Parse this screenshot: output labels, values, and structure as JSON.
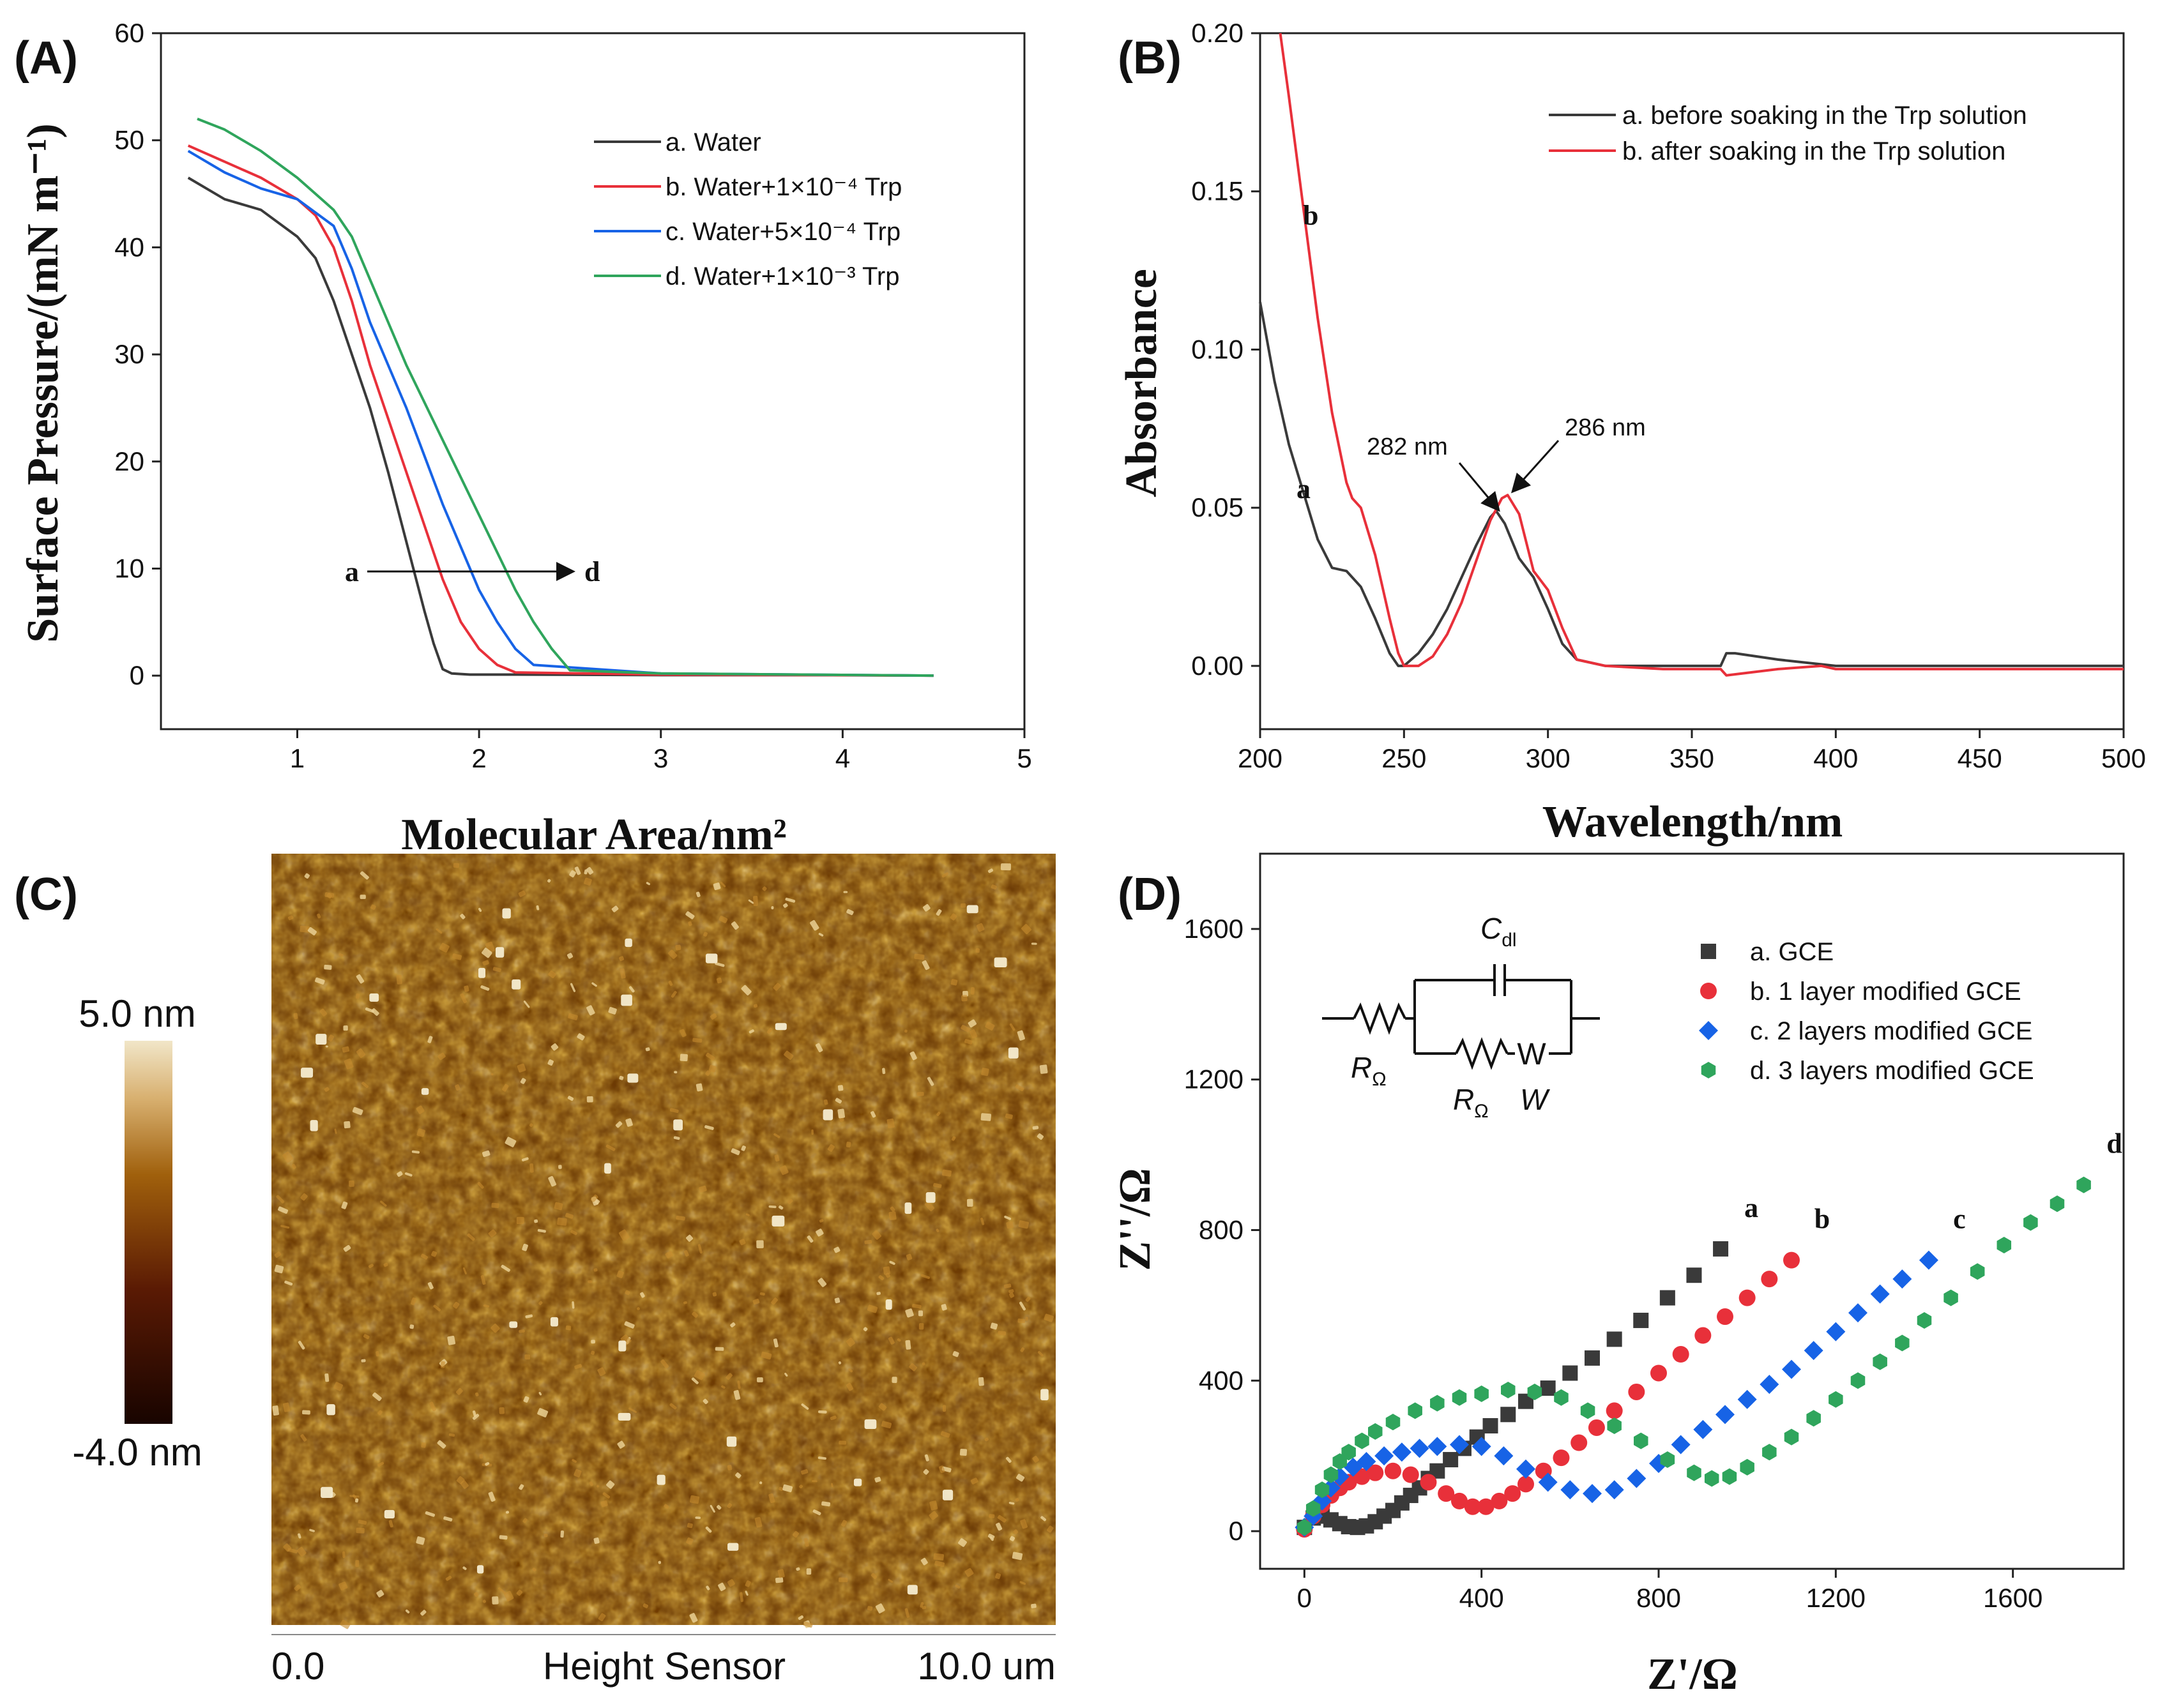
{
  "panel_letters": {
    "A": "(A)",
    "B": "(B)",
    "C": "(C)",
    "D": "(D)"
  },
  "colors": {
    "black": "#3a3a3a",
    "red": "#e8303a",
    "blue": "#1763e6",
    "green": "#2fa55c",
    "afm_dark": "#2a0800",
    "afm_mid": "#9a5a08",
    "afm_light": "#efe0c0"
  },
  "chart_data": [
    {
      "panel": "A",
      "type": "line",
      "xlabel": "Molecular Area/nm²",
      "ylabel": "Surface Pressure/(mN m⁻¹)",
      "xlim": [
        0.25,
        5
      ],
      "ylim": [
        -5,
        60
      ],
      "xticks": [
        "1",
        "2",
        "3",
        "4",
        "5"
      ],
      "yticks": [
        "0",
        "10",
        "20",
        "30",
        "40",
        "50",
        "60"
      ],
      "legend": [
        "a. Water",
        "b. Water+1×10⁻⁴ Trp",
        "c. Water+5×10⁻⁴ Trp",
        "d. Water+1×10⁻³ Trp"
      ],
      "legend_position": "top-right",
      "annotations": {
        "start": "a",
        "end": "d"
      },
      "series": [
        {
          "name": "a. Water",
          "color": "black",
          "x": [
            0.4,
            0.6,
            0.8,
            1.0,
            1.1,
            1.2,
            1.3,
            1.4,
            1.5,
            1.6,
            1.7,
            1.75,
            1.8,
            1.85,
            1.95,
            2.2,
            3.0,
            4.0,
            4.5
          ],
          "y": [
            46.5,
            44.5,
            43.5,
            41,
            39,
            35,
            30,
            25,
            19,
            12.5,
            6,
            3,
            0.6,
            0.2,
            0.1,
            0.1,
            0.05,
            0.05,
            0
          ]
        },
        {
          "name": "b. Water+1×10⁻⁴ Trp",
          "color": "red",
          "x": [
            0.4,
            0.6,
            0.8,
            1.0,
            1.1,
            1.2,
            1.3,
            1.4,
            1.5,
            1.6,
            1.7,
            1.8,
            1.9,
            2.0,
            2.1,
            2.2,
            3.0,
            4.5
          ],
          "y": [
            49.5,
            48,
            46.5,
            44.5,
            43,
            40,
            35,
            29,
            24,
            19,
            14,
            9,
            5,
            2.5,
            1,
            0.3,
            0.1,
            0
          ]
        },
        {
          "name": "c. Water+5×10⁻⁴ Trp",
          "color": "blue",
          "x": [
            0.4,
            0.6,
            0.8,
            1.0,
            1.2,
            1.3,
            1.4,
            1.5,
            1.6,
            1.7,
            1.8,
            1.9,
            2.0,
            2.1,
            2.2,
            2.3,
            3.0,
            4.5
          ],
          "y": [
            49,
            47,
            45.5,
            44.5,
            42,
            38,
            33,
            29,
            25,
            20.5,
            16,
            12,
            8,
            5,
            2.5,
            1,
            0.2,
            0
          ]
        },
        {
          "name": "d. Water+1×10⁻³ Trp",
          "color": "green",
          "x": [
            0.45,
            0.6,
            0.8,
            1.0,
            1.2,
            1.3,
            1.4,
            1.5,
            1.6,
            1.7,
            1.8,
            1.9,
            2.0,
            2.1,
            2.2,
            2.3,
            2.4,
            2.5,
            3.0,
            4.5
          ],
          "y": [
            52,
            51,
            49,
            46.5,
            43.5,
            41,
            37,
            33,
            29,
            25.5,
            22,
            18.5,
            15,
            11.5,
            8,
            5,
            2.5,
            0.5,
            0.2,
            0
          ]
        }
      ]
    },
    {
      "panel": "B",
      "type": "line",
      "xlabel": "Wavelength/nm",
      "ylabel": "Absorbance",
      "xlim": [
        200,
        500
      ],
      "ylim": [
        -0.02,
        0.2
      ],
      "xticks": [
        "200",
        "250",
        "300",
        "350",
        "400",
        "450",
        "500"
      ],
      "yticks": [
        "0.00",
        "0.05",
        "0.10",
        "0.15",
        "0.20"
      ],
      "legend": [
        "a. before soaking in the Trp solution",
        "b. after soaking in the Trp solution"
      ],
      "legend_position": "top-right",
      "annotations": {
        "peak_a": "282 nm",
        "peak_b": "286 nm",
        "label_a": "a",
        "label_b": "b"
      },
      "series": [
        {
          "name": "a. before soaking in the Trp solution",
          "color": "black",
          "x": [
            200,
            205,
            210,
            215,
            220,
            225,
            230,
            235,
            240,
            245,
            248,
            250,
            255,
            260,
            265,
            270,
            275,
            280,
            282,
            285,
            290,
            295,
            300,
            305,
            310,
            320,
            340,
            360,
            362,
            365,
            380,
            400,
            450,
            500
          ],
          "y": [
            0.115,
            0.09,
            0.07,
            0.055,
            0.04,
            0.031,
            0.03,
            0.025,
            0.015,
            0.004,
            0.0,
            0.0,
            0.004,
            0.01,
            0.018,
            0.028,
            0.038,
            0.047,
            0.049,
            0.045,
            0.034,
            0.028,
            0.018,
            0.007,
            0.002,
            0.0,
            0.0,
            0.0,
            0.004,
            0.004,
            0.002,
            0.0,
            0.0,
            0.0
          ]
        },
        {
          "name": "b. after soaking in the Trp solution",
          "color": "red",
          "x": [
            207,
            210,
            215,
            220,
            225,
            230,
            232,
            235,
            240,
            245,
            248,
            250,
            255,
            260,
            265,
            270,
            275,
            280,
            284,
            286,
            290,
            295,
            300,
            305,
            310,
            320,
            340,
            360,
            362,
            380,
            395,
            400,
            450,
            500
          ],
          "y": [
            0.2,
            0.18,
            0.145,
            0.11,
            0.08,
            0.058,
            0.053,
            0.05,
            0.035,
            0.015,
            0.004,
            0.0,
            0.0,
            0.003,
            0.01,
            0.02,
            0.033,
            0.046,
            0.053,
            0.054,
            0.048,
            0.03,
            0.024,
            0.012,
            0.002,
            0.0,
            -0.001,
            -0.001,
            -0.003,
            -0.001,
            0.0,
            -0.001,
            -0.001,
            -0.001
          ]
        }
      ]
    },
    {
      "panel": "D",
      "type": "scatter",
      "xlabel": "Z'/Ω",
      "ylabel": "Z''/Ω",
      "xlim": [
        -100,
        1850
      ],
      "ylim": [
        -100,
        1800
      ],
      "xticks": [
        "0",
        "400",
        "800",
        "1200",
        "1600"
      ],
      "yticks": [
        "0",
        "400",
        "800",
        "1200",
        "1600"
      ],
      "legend": [
        "a. GCE",
        "b. 1 layer modified GCE",
        "c. 2 layers modified GCE",
        "d. 3 layers modified GCE"
      ],
      "legend_position": "top-right",
      "end_labels": [
        "a",
        "b",
        "c",
        "d"
      ],
      "series": [
        {
          "name": "a. GCE",
          "color": "black",
          "marker": "square",
          "x": [
            0,
            20,
            40,
            60,
            80,
            100,
            120,
            140,
            160,
            180,
            200,
            220,
            240,
            260,
            280,
            300,
            330,
            360,
            390,
            420,
            460,
            500,
            550,
            600,
            650,
            700,
            760,
            820,
            880,
            940
          ],
          "y": [
            10,
            35,
            40,
            30,
            20,
            12,
            10,
            14,
            25,
            40,
            55,
            75,
            95,
            115,
            140,
            160,
            190,
            220,
            250,
            280,
            310,
            345,
            380,
            420,
            460,
            510,
            560,
            620,
            680,
            750
          ]
        },
        {
          "name": "b. 1 layer modified GCE",
          "color": "red",
          "marker": "circle",
          "x": [
            0,
            20,
            40,
            60,
            80,
            100,
            130,
            160,
            200,
            240,
            280,
            320,
            350,
            380,
            410,
            440,
            470,
            500,
            540,
            580,
            620,
            660,
            700,
            750,
            800,
            850,
            900,
            950,
            1000,
            1050,
            1100
          ],
          "y": [
            5,
            40,
            70,
            95,
            115,
            130,
            145,
            155,
            160,
            150,
            130,
            100,
            80,
            65,
            65,
            80,
            100,
            125,
            160,
            195,
            235,
            275,
            320,
            370,
            420,
            470,
            520,
            570,
            620,
            670,
            720
          ]
        },
        {
          "name": "c. 2 layers modified GCE",
          "color": "blue",
          "marker": "diamond",
          "x": [
            0,
            20,
            40,
            60,
            80,
            110,
            140,
            180,
            220,
            260,
            300,
            350,
            400,
            450,
            500,
            550,
            600,
            650,
            700,
            750,
            800,
            850,
            900,
            950,
            1000,
            1050,
            1100,
            1150,
            1200,
            1250,
            1300,
            1350,
            1410
          ],
          "y": [
            10,
            40,
            80,
            115,
            145,
            170,
            185,
            200,
            210,
            220,
            225,
            230,
            225,
            200,
            165,
            130,
            110,
            100,
            110,
            140,
            180,
            230,
            270,
            310,
            350,
            390,
            430,
            480,
            530,
            580,
            630,
            670,
            720
          ]
        },
        {
          "name": "d. 3 layers modified GCE",
          "color": "green",
          "marker": "hexagon",
          "x": [
            0,
            20,
            40,
            60,
            80,
            100,
            130,
            160,
            200,
            250,
            300,
            350,
            400,
            460,
            520,
            580,
            640,
            700,
            760,
            820,
            880,
            920,
            960,
            1000,
            1050,
            1100,
            1150,
            1200,
            1250,
            1300,
            1350,
            1400,
            1460,
            1520,
            1580,
            1640,
            1700,
            1760
          ],
          "y": [
            10,
            60,
            110,
            150,
            185,
            210,
            240,
            265,
            290,
            320,
            340,
            355,
            365,
            375,
            370,
            355,
            320,
            280,
            240,
            190,
            155,
            140,
            145,
            170,
            210,
            250,
            300,
            350,
            400,
            450,
            500,
            560,
            620,
            690,
            760,
            820,
            870,
            920
          ]
        }
      ]
    }
  ],
  "panel_c": {
    "scale_max": "5.0 nm",
    "scale_min": "-4.0 nm",
    "bottom_left": "0.0",
    "bottom_center": "Height Sensor",
    "bottom_right": "10.0 um"
  },
  "circuit": {
    "cdl_main": "C",
    "cdl_sub": "dl",
    "r1_main": "R",
    "r1_sub": "Ω",
    "r2_main": "R",
    "r2_sub": "Ω",
    "w_label": "W",
    "w_symbol": "W"
  }
}
